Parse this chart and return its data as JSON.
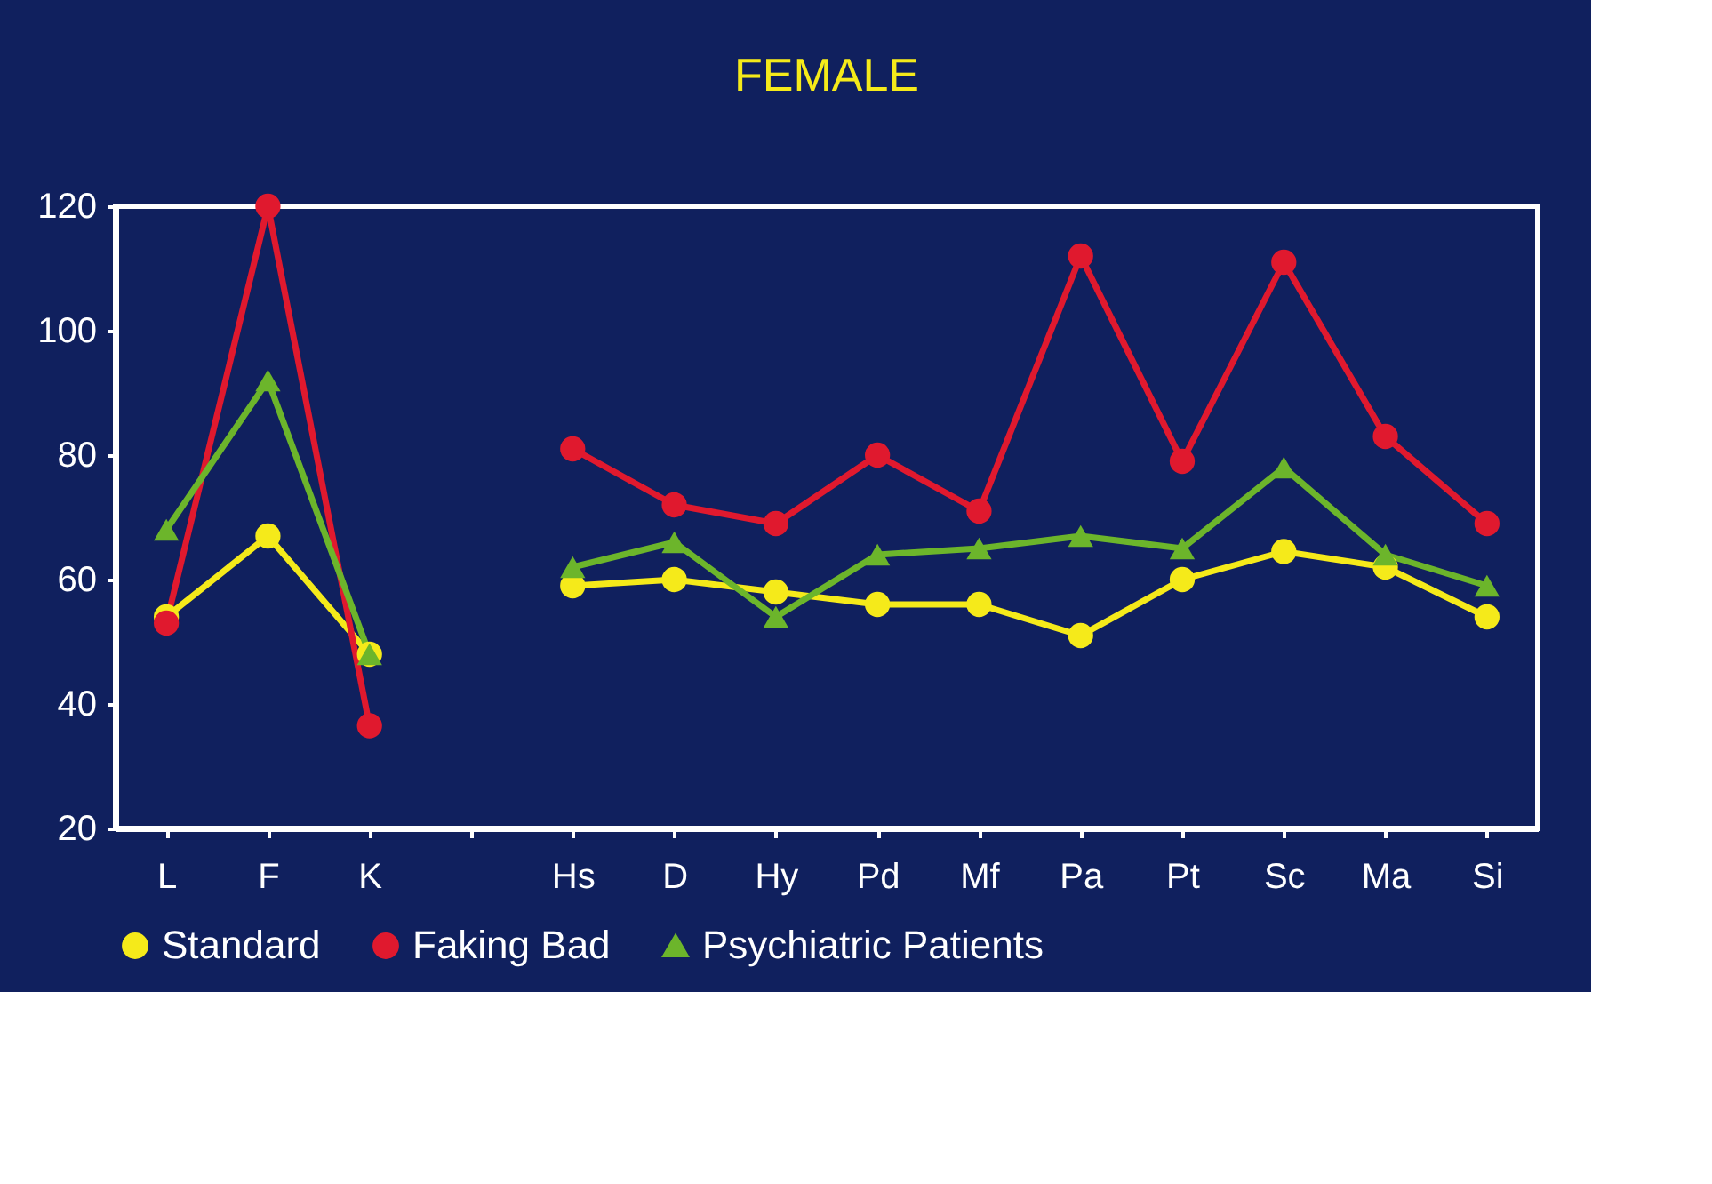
{
  "chart_data": {
    "type": "line",
    "title": "FEMALE",
    "categories": [
      "L",
      "F",
      "K",
      null,
      "Hs",
      "D",
      "Hy",
      "Pd",
      "Mf",
      "Pa",
      "Pt",
      "Sc",
      "Ma",
      "Si"
    ],
    "ylim": [
      20,
      120
    ],
    "yticks": [
      20,
      40,
      60,
      80,
      100,
      120
    ],
    "grid": false,
    "legend": "bottom",
    "line_style": "solid",
    "series": [
      {
        "name": "Standard",
        "color": "#f5ea1a",
        "marker": "circle",
        "values": [
          54,
          67,
          48,
          null,
          59,
          60,
          58,
          56,
          56,
          51,
          60,
          64.5,
          62,
          54
        ]
      },
      {
        "name": "Faking Bad",
        "color": "#e0192e",
        "marker": "circle",
        "values": [
          53,
          120,
          36.5,
          null,
          81,
          72,
          69,
          80,
          71,
          112,
          79,
          111,
          83,
          69
        ]
      },
      {
        "name": "Psychiatric Patients",
        "color": "#6cb52b",
        "marker": "triangle",
        "values": [
          68,
          92,
          48,
          null,
          62,
          66,
          54,
          64,
          65,
          67,
          65,
          78,
          64,
          59
        ]
      }
    ]
  }
}
